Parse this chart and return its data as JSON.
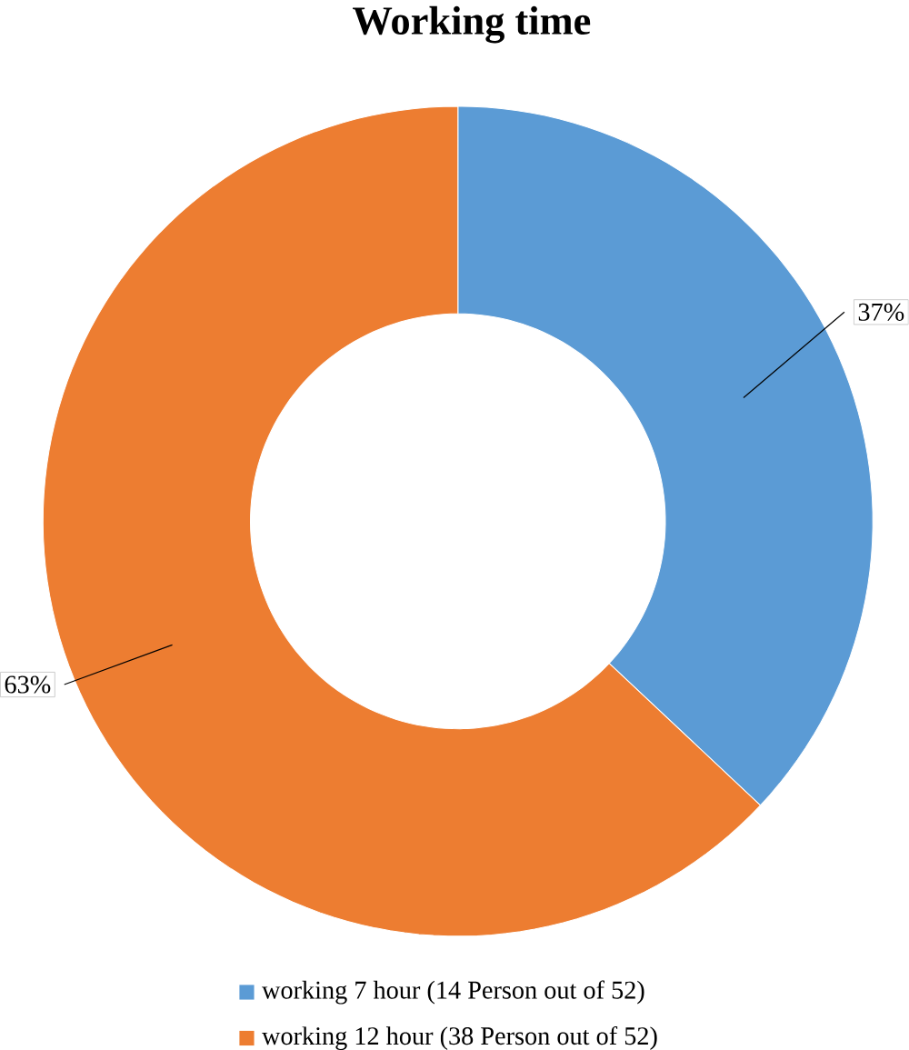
{
  "chart_data": {
    "type": "donut",
    "title": "Working time",
    "categories": [
      "working 7 hour (14 Person out of 52)",
      "working 12 hour (38 Person out of 52)"
    ],
    "values": [
      37,
      63
    ],
    "colors": [
      "#5b9bd5",
      "#ed7d31"
    ],
    "value_labels": [
      "37%",
      "63%"
    ],
    "legend": "bottom"
  }
}
